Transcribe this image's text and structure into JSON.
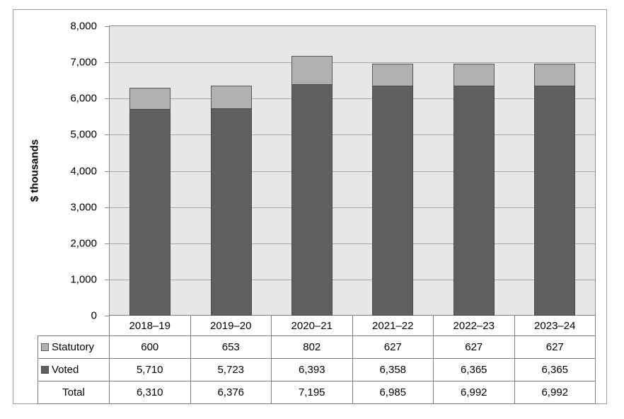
{
  "chart_data": {
    "type": "bar",
    "stacked": true,
    "title": "",
    "xlabel": "",
    "ylabel": "$ thousands",
    "ylim": [
      0,
      8000
    ],
    "ytick_step": 1000,
    "ytick_labels": [
      "0",
      "1,000",
      "2,000",
      "3,000",
      "4,000",
      "5,000",
      "6,000",
      "7,000",
      "8,000"
    ],
    "grid": true,
    "legend_position": "table-left",
    "categories": [
      "2018–19",
      "2019–20",
      "2020–21",
      "2021–22",
      "2022–23",
      "2023–24"
    ],
    "series": [
      {
        "name": "Statutory",
        "values": [
          600,
          653,
          802,
          627,
          627,
          627
        ]
      },
      {
        "name": "Voted",
        "values": [
          5710,
          5723,
          6393,
          6358,
          6365,
          6365
        ]
      }
    ],
    "totals": {
      "label": "Total",
      "values": [
        6310,
        6376,
        7195,
        6985,
        6992,
        6992
      ]
    }
  },
  "table": {
    "header": [
      "2018–19",
      "2019–20",
      "2020–21",
      "2021–22",
      "2022–23",
      "2023–24"
    ],
    "rows": [
      {
        "label": "Statutory",
        "swatch": "statutory",
        "cells": [
          "600",
          "653",
          "802",
          "627",
          "627",
          "627"
        ]
      },
      {
        "label": "Voted",
        "swatch": "voted",
        "cells": [
          "5,710",
          "5,723",
          "6,393",
          "6,358",
          "6,365",
          "6,365"
        ]
      },
      {
        "label": "Total",
        "swatch": null,
        "cells": [
          "6,310",
          "6,376",
          "7,195",
          "6,985",
          "6,992",
          "6,992"
        ]
      }
    ]
  },
  "colors": {
    "statutory_fill": "#b1b1b1",
    "statutory_border": "#595959",
    "voted_fill": "#5f5f5f",
    "voted_border": "#4a4a4a",
    "plot_bg": "#e7e7e7",
    "gridline": "#a8a8a8",
    "axis": "#8c8c8c",
    "table_border": "#808080",
    "frame_border": "#9a9a9a"
  }
}
